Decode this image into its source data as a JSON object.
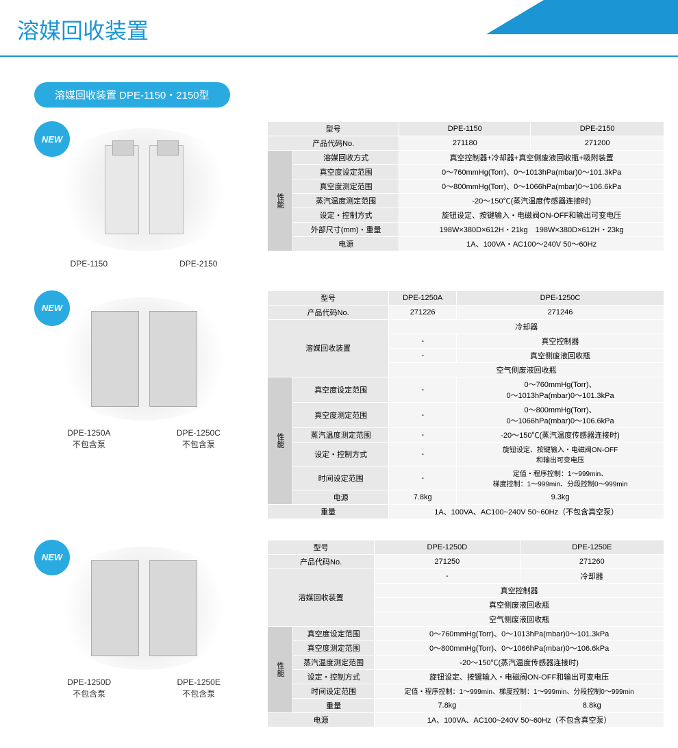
{
  "page_title": "溶媒回收装置",
  "subtitle": "溶媒回收装置 DPE-1150・2150型",
  "new_label": "NEW",
  "sections": [
    {
      "products": [
        {
          "name": "DPE-1150",
          "note": ""
        },
        {
          "name": "DPE-2150",
          "note": ""
        }
      ],
      "table": {
        "model_label": "型号",
        "code_label": "产品代码No.",
        "perf_label": "性能",
        "models": [
          "DPE-1150",
          "DPE-2150"
        ],
        "codes": [
          "271180",
          "271200"
        ],
        "rows": [
          {
            "label": "溶媒回收方式",
            "value": "真空控制器+冷却器+真空侧废液回收瓶+吸附装置"
          },
          {
            "label": "真空度设定范围",
            "value": "0～760mmHg(Torr)、0～1013hPa(mbar)0～101.3kPa"
          },
          {
            "label": "真空度测定范围",
            "value": "0～800mmHg(Torr)、0～1066hPa(mbar)0～106.6kPa"
          },
          {
            "label": "蒸汽温度测定范围",
            "value": "-20～150℃(蒸汽温度传感器连接时)"
          },
          {
            "label": "设定・控制方式",
            "value": "旋钮设定、按键输入・电磁阀ON-OFF和输出可变电压"
          },
          {
            "label": "外部尺寸(mm)・重量",
            "value": "198W×380D×612H・21kg　198W×380D×612H・23kg"
          },
          {
            "label": "电源",
            "value": "1A、100VA・AC100～240V 50～60Hz"
          }
        ]
      }
    },
    {
      "products": [
        {
          "name": "DPE-1250A",
          "note": "不包含泵"
        },
        {
          "name": "DPE-1250C",
          "note": "不包含泵"
        }
      ],
      "table": {
        "model_label": "型号",
        "code_label": "产品代码No.",
        "perf_label": "性能",
        "models": [
          "DPE-1250A",
          "DPE-1250C"
        ],
        "codes": [
          "271226",
          "271246"
        ],
        "recovery_label": "溶媒回收装置",
        "recovery_rows": [
          [
            "",
            "冷却器"
          ],
          [
            "-",
            "真空控制器"
          ],
          [
            "-",
            "真空侧废液回收瓶"
          ],
          [
            "",
            "空气侧废液回收瓶"
          ]
        ],
        "perf_rows": [
          {
            "label": "真空度设定范围",
            "c1": "-",
            "c2": "0～760mmHg(Torr)、\n0～1013hPa(mbar)0～101.3kPa"
          },
          {
            "label": "真空度测定范围",
            "c1": "-",
            "c2": "0～800mmHg(Torr)、\n0～1066hPa(mbar)0～106.6kPa"
          },
          {
            "label": "蒸汽温度测定范围",
            "c1": "-",
            "c2": "-20～150℃(蒸汽温度传感器连接时)"
          },
          {
            "label": "设定・控制方式",
            "c1": "-",
            "c2": "旋钮设定、按键输入・电磁阀ON-OFF\n和输出可变电压"
          },
          {
            "label": "时间设定范围",
            "c1": "-",
            "c2": "定值・程序控制：1～999min、\n梯度控制：1～999min、分段控制0～999min"
          },
          {
            "label": "电源",
            "c1": "7.8kg",
            "c2": "9.3kg"
          }
        ],
        "weight_label": "重量",
        "weight_value": "1A、100VA、AC100~240V 50~60Hz（不包含真空泵）"
      }
    },
    {
      "products": [
        {
          "name": "DPE-1250D",
          "note": "不包含泵"
        },
        {
          "name": "DPE-1250E",
          "note": "不包含泵"
        }
      ],
      "table": {
        "model_label": "型号",
        "code_label": "产品代码No.",
        "perf_label": "性能",
        "models": [
          "DPE-1250D",
          "DPE-1250E"
        ],
        "codes": [
          "271250",
          "271260"
        ],
        "recovery_label": "溶媒回收装置",
        "recovery_top": [
          "-",
          "冷却器"
        ],
        "recovery_span": [
          "真空控制器",
          "真空侧废液回收瓶",
          "空气侧废液回收瓶"
        ],
        "perf_rows": [
          {
            "label": "真空度设定范围",
            "value": "0～760mmHg(Torr)、0～1013hPa(mbar)0～101.3kPa"
          },
          {
            "label": "真空度测定范围",
            "value": "0～800mmHg(Torr)、0～1066hPa(mbar)0～106.6kPa"
          },
          {
            "label": "蒸汽温度测定范围",
            "value": "-20～150℃(蒸汽温度传感器连接时)"
          },
          {
            "label": "设定・控制方式",
            "value": "旋钮设定、按键输入・电磁阀ON-OFF和输出可变电压"
          },
          {
            "label": "时间设定范围",
            "value": "定值・程序控制：1～999min、梯度控制：1～999min、分段控制0～999min"
          }
        ],
        "weight_label": "重量",
        "weights": [
          "7.8kg",
          "8.8kg"
        ],
        "power_label": "电源",
        "power_value": "1A、100VA、AC100~240V 50~60Hz（不包含真空泵）"
      }
    }
  ],
  "colors": {
    "accent": "#1b95d4",
    "badge": "#29abe2",
    "tbl_lbl": "#e8e8e8",
    "tbl_val": "#f5f5f5"
  }
}
